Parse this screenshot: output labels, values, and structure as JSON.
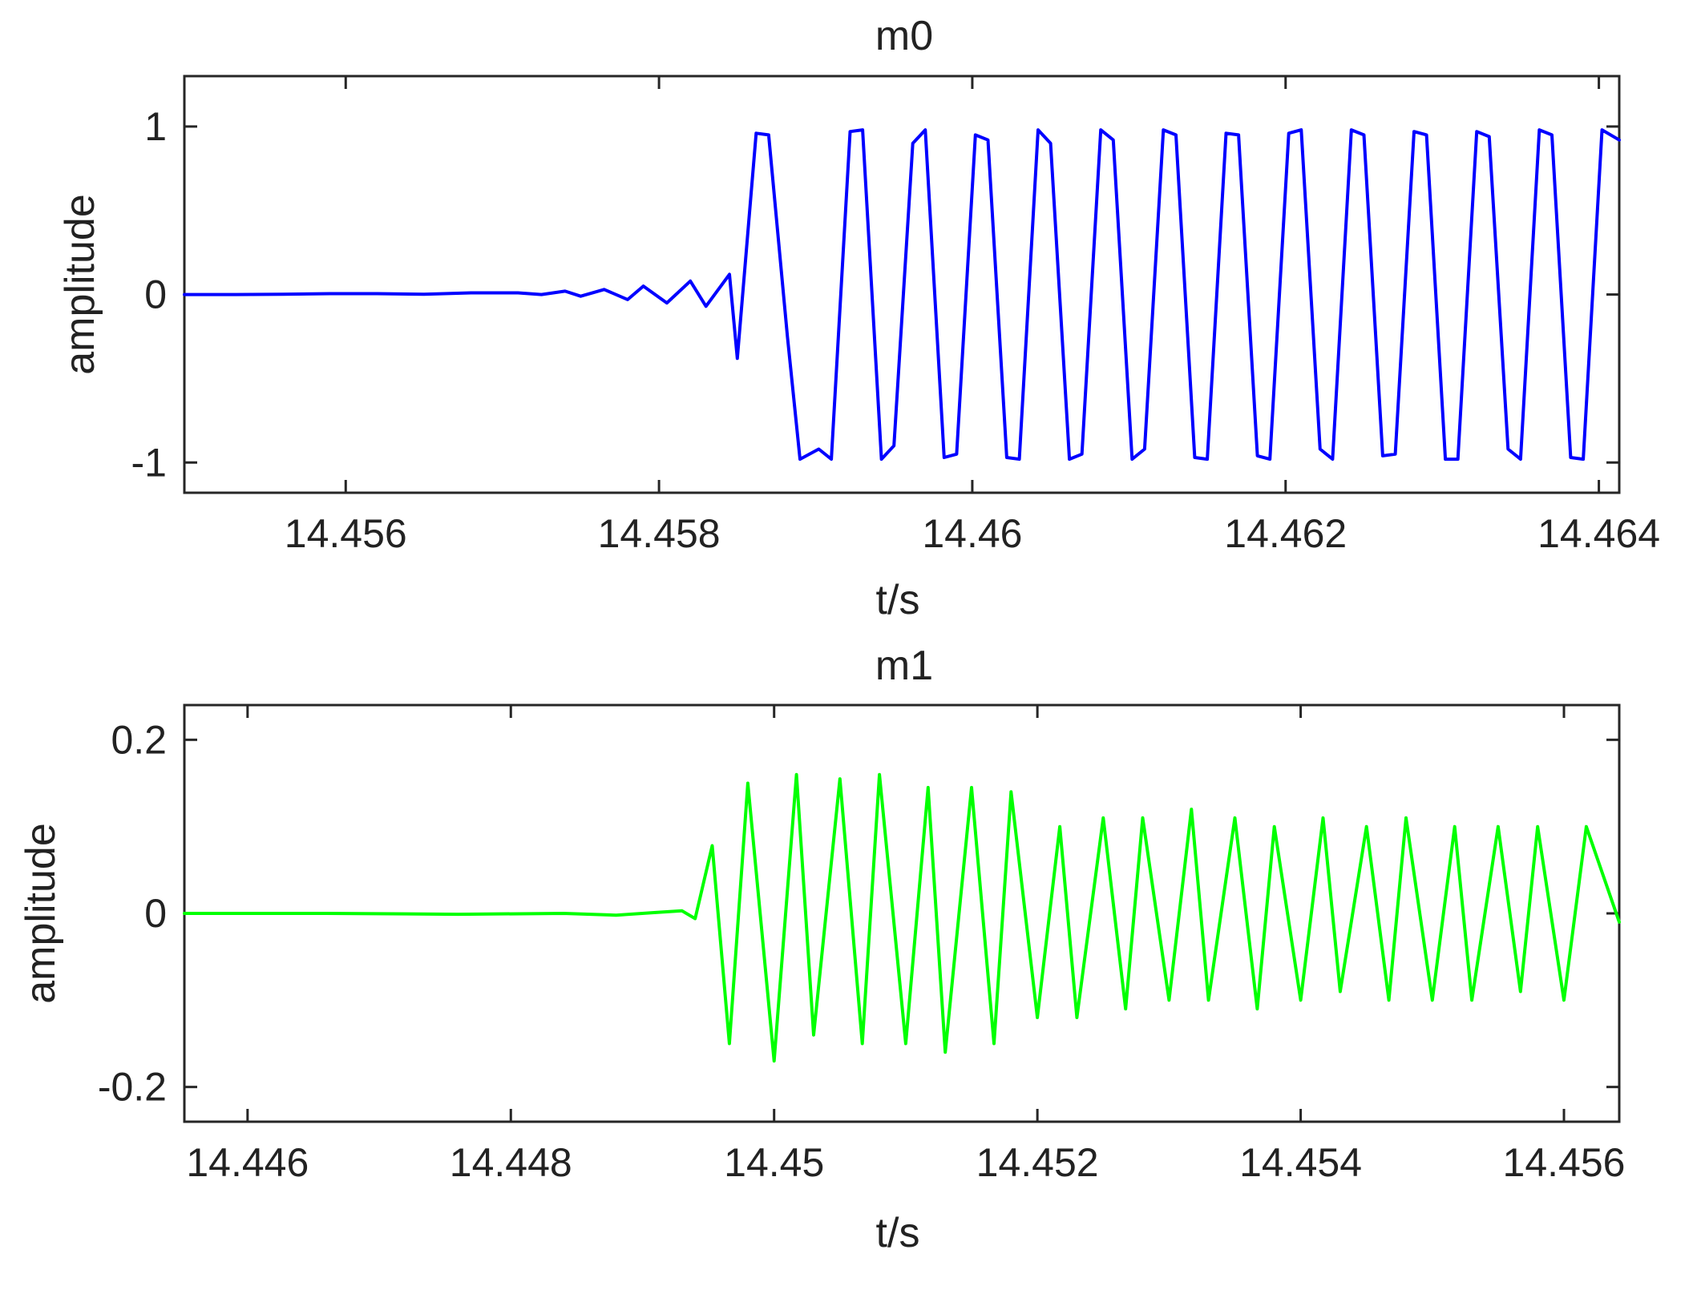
{
  "chart_data": [
    {
      "type": "line",
      "title": "m0",
      "xlabel": "t/s",
      "ylabel": "amplitude",
      "xlim": [
        14.45497,
        14.46413
      ],
      "ylim": [
        -1.18,
        1.3
      ],
      "x_ticks": [
        14.456,
        14.458,
        14.46,
        14.462,
        14.464
      ],
      "x_tick_labels": [
        "14.456",
        "14.458",
        "14.46",
        "14.462",
        "14.464"
      ],
      "y_ticks": [
        -1,
        0,
        1
      ],
      "y_tick_labels": [
        "-1",
        "0",
        "1"
      ],
      "grid": false,
      "series": [
        {
          "color": "#0000ff",
          "x": [
            14.45497,
            14.4553,
            14.4556,
            14.4559,
            14.4562,
            14.4565,
            14.4568,
            14.4571,
            14.45725,
            14.4574,
            14.4575,
            14.45765,
            14.4578,
            14.4579,
            14.45805,
            14.4582,
            14.4583,
            14.45845,
            14.4585,
            14.45862,
            14.4587,
            14.45882,
            14.4589,
            14.45902,
            14.4591,
            14.45922,
            14.4593,
            14.45942,
            14.4595,
            14.45962,
            14.4597,
            14.45982,
            14.4599,
            14.46002,
            14.4601,
            14.46022,
            14.4603,
            14.46042,
            14.4605,
            14.46062,
            14.4607,
            14.46082,
            14.4609,
            14.46102,
            14.4611,
            14.46122,
            14.4613,
            14.46142,
            14.4615,
            14.46162,
            14.4617,
            14.46182,
            14.4619,
            14.46202,
            14.4621,
            14.46222,
            14.4623,
            14.46242,
            14.4625,
            14.46262,
            14.4627,
            14.46282,
            14.4629,
            14.46302,
            14.4631,
            14.46322,
            14.4633,
            14.46342,
            14.4635,
            14.46362,
            14.4637,
            14.46382,
            14.4639,
            14.46402,
            14.46413
          ],
          "y": [
            0,
            0,
            0.002,
            0.005,
            0.005,
            0.002,
            0.01,
            0.01,
            0.0,
            0.02,
            -0.01,
            0.03,
            -0.03,
            0.05,
            -0.05,
            0.08,
            -0.07,
            0.12,
            -0.38,
            0.96,
            0.95,
            -0.25,
            -0.98,
            -0.92,
            -0.98,
            0.97,
            0.98,
            -0.98,
            -0.9,
            0.9,
            0.98,
            -0.97,
            -0.95,
            0.95,
            0.92,
            -0.97,
            -0.98,
            0.98,
            0.9,
            -0.98,
            -0.95,
            0.98,
            0.92,
            -0.98,
            -0.92,
            0.98,
            0.95,
            -0.97,
            -0.98,
            0.96,
            0.95,
            -0.96,
            -0.98,
            0.96,
            0.98,
            -0.92,
            -0.98,
            0.98,
            0.95,
            -0.96,
            -0.95,
            0.97,
            0.95,
            -0.98,
            -0.98,
            0.97,
            0.94,
            -0.92,
            -0.98,
            0.98,
            0.95,
            -0.97,
            -0.98,
            0.98,
            0.92
          ]
        }
      ]
    },
    {
      "type": "line",
      "title": "m1",
      "xlabel": "t/s",
      "ylabel": "amplitude",
      "xlim": [
        14.44552,
        14.45642
      ],
      "ylim": [
        -0.24,
        0.24
      ],
      "x_ticks": [
        14.446,
        14.448,
        14.45,
        14.452,
        14.454,
        14.456
      ],
      "x_tick_labels": [
        "14.446",
        "14.448",
        "14.45",
        "14.452",
        "14.454",
        "14.456"
      ],
      "y_ticks": [
        -0.2,
        0,
        0.2
      ],
      "y_tick_labels": [
        "-0.2",
        "0",
        "0.2"
      ],
      "grid": false,
      "series": [
        {
          "color": "#00ff00",
          "x": [
            14.44552,
            14.4466,
            14.4476,
            14.4484,
            14.4488,
            14.4491,
            14.4493,
            14.4494,
            14.44953,
            14.44966,
            14.4498,
            14.45,
            14.45017,
            14.4503,
            14.4505,
            14.45067,
            14.4508,
            14.451,
            14.45117,
            14.4513,
            14.4515,
            14.45167,
            14.4518,
            14.452,
            14.45217,
            14.4523,
            14.4525,
            14.45267,
            14.4528,
            14.453,
            14.45317,
            14.4533,
            14.4535,
            14.45367,
            14.4538,
            14.454,
            14.45417,
            14.4543,
            14.4545,
            14.45467,
            14.4548,
            14.455,
            14.45517,
            14.4553,
            14.4555,
            14.45567,
            14.4558,
            14.456,
            14.45617,
            14.45642
          ],
          "y": [
            0,
            0,
            -0.001,
            0.0,
            -0.002,
            0.001,
            0.003,
            -0.006,
            0.078,
            -0.15,
            0.15,
            -0.17,
            0.16,
            -0.14,
            0.155,
            -0.15,
            0.16,
            -0.15,
            0.145,
            -0.16,
            0.145,
            -0.15,
            0.14,
            -0.12,
            0.1,
            -0.12,
            0.11,
            -0.11,
            0.11,
            -0.1,
            0.12,
            -0.1,
            0.11,
            -0.11,
            0.1,
            -0.1,
            0.11,
            -0.09,
            0.1,
            -0.1,
            0.11,
            -0.1,
            0.1,
            -0.1,
            0.1,
            -0.09,
            0.1,
            -0.1,
            0.1,
            -0.01
          ]
        }
      ]
    }
  ]
}
